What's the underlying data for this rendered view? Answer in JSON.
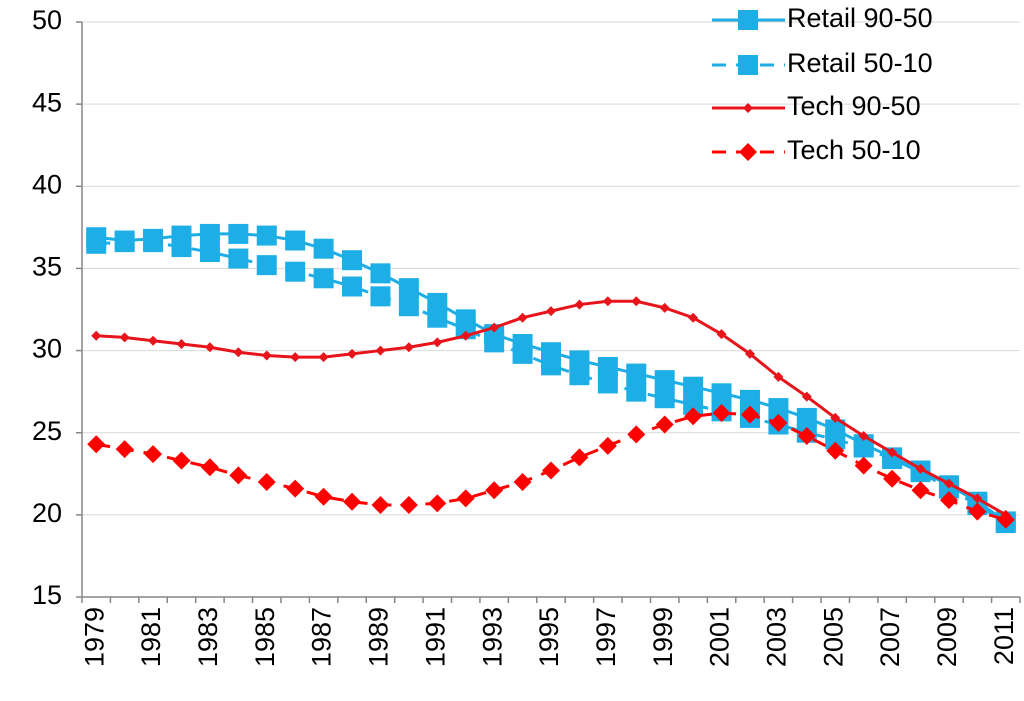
{
  "chart_data": {
    "type": "line",
    "categories": [
      "1979",
      null,
      "1981",
      null,
      "1983",
      null,
      "1985",
      null,
      "1987",
      null,
      "1989",
      null,
      "1991",
      null,
      "1993",
      null,
      "1995",
      null,
      "1997",
      null,
      "1999",
      null,
      "2001",
      null,
      "2003",
      null,
      "2005",
      null,
      "2007",
      null,
      "2009",
      null,
      "2011"
    ],
    "ylim": [
      15,
      50
    ],
    "yticks": [
      15,
      20,
      25,
      30,
      35,
      40,
      45,
      50
    ],
    "grid": true,
    "legend": "top-right",
    "series": [
      {
        "name": "Retail 90-50",
        "color": "#1eaee6",
        "dashed": false,
        "marker": "square",
        "values": [
          36.9,
          36.7,
          36.8,
          37.0,
          37.1,
          37.1,
          37.0,
          36.7,
          36.2,
          35.5,
          34.7,
          33.8,
          32.9,
          31.9,
          31.0,
          30.4,
          29.9,
          29.4,
          29.0,
          28.6,
          28.2,
          27.8,
          27.4,
          27.0,
          26.5,
          25.9,
          25.2,
          24.3,
          23.5,
          22.7,
          21.8,
          20.8,
          19.6
        ]
      },
      {
        "name": "Retail 50-10",
        "color": "#1eaee6",
        "dashed": true,
        "marker": "square",
        "values": [
          36.5,
          36.6,
          36.6,
          36.3,
          36.0,
          35.6,
          35.2,
          34.8,
          34.4,
          33.9,
          33.3,
          32.7,
          32.0,
          31.3,
          30.5,
          29.8,
          29.1,
          28.5,
          28.0,
          27.5,
          27.1,
          26.7,
          26.3,
          25.9,
          25.5,
          25.0,
          24.6,
          24.1,
          23.4,
          22.6,
          21.6,
          20.6,
          19.5
        ]
      },
      {
        "name": "Tech 90-50",
        "color": "#e8141b",
        "dashed": false,
        "marker": "diamond-small",
        "values": [
          30.9,
          30.8,
          30.6,
          30.4,
          30.2,
          29.9,
          29.7,
          29.6,
          29.6,
          29.8,
          30.0,
          30.2,
          30.5,
          30.9,
          31.4,
          32.0,
          32.4,
          32.8,
          33.0,
          33.0,
          32.6,
          32.0,
          31.0,
          29.8,
          28.4,
          27.2,
          25.9,
          24.8,
          23.8,
          22.8,
          21.9,
          21.0,
          20.0
        ]
      },
      {
        "name": "Tech 50-10",
        "color": "#ff0000",
        "dashed": true,
        "marker": "diamond",
        "values": [
          24.3,
          24.0,
          23.7,
          23.3,
          22.9,
          22.4,
          22.0,
          21.6,
          21.1,
          20.8,
          20.6,
          20.6,
          20.7,
          21.0,
          21.5,
          22.0,
          22.7,
          23.5,
          24.2,
          24.9,
          25.5,
          26.0,
          26.2,
          26.1,
          25.6,
          24.8,
          23.9,
          23.0,
          22.2,
          21.5,
          20.9,
          20.2,
          19.7
        ]
      }
    ]
  }
}
